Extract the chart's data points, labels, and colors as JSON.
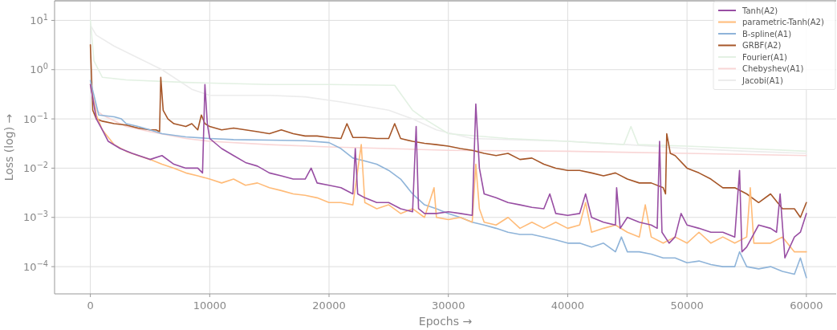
{
  "chart_data": {
    "type": "line",
    "xlabel": "Epochs →",
    "ylabel": "Loss (log) →",
    "log": "y",
    "grid": true,
    "legend": "top right",
    "line_style": "solid",
    "xlim": [
      -3000,
      62500
    ],
    "xticks": [
      0,
      10000,
      20000,
      30000,
      40000,
      50000,
      60000
    ],
    "ylim": [
      2.8e-05,
      25
    ],
    "yticks": [
      {
        "value": 0.0001,
        "label": "10$^{−4}$"
      },
      {
        "value": 0.001,
        "label": "10$^{−3}$"
      },
      {
        "value": 0.01,
        "label": "10$^{−2}$"
      },
      {
        "value": 0.1,
        "label": "10$^{−1}$"
      },
      {
        "value": 1,
        "label": "10$^{0}$"
      },
      {
        "value": 10,
        "label": "10$^{1}$"
      }
    ],
    "series": [
      {
        "name": "Tanh(A2)",
        "color": "#984ea3",
        "x": [
          0,
          500,
          1000,
          1500,
          2500,
          3500,
          5000,
          6000,
          7000,
          8000,
          9000,
          9400,
          9600,
          9800,
          10000,
          11000,
          12000,
          13000,
          14000,
          15000,
          16000,
          17000,
          18000,
          18500,
          19000,
          20000,
          21000,
          22000,
          22200,
          22400,
          23000,
          24000,
          25000,
          26000,
          27000,
          27300,
          27500,
          28000,
          29000,
          30000,
          31000,
          32000,
          32300,
          32600,
          33000,
          34000,
          35000,
          36000,
          37000,
          38000,
          38500,
          39000,
          40000,
          41000,
          41500,
          42000,
          43000,
          44000,
          44100,
          44400,
          45000,
          46000,
          47000,
          47500,
          47700,
          47900,
          48500,
          49000,
          49500,
          50000,
          51000,
          52000,
          53000,
          54000,
          54400,
          54600,
          55000,
          56000,
          57000,
          57500,
          57800,
          58200,
          59000,
          59500,
          60000
        ],
        "values": [
          0.5,
          0.1,
          0.06,
          0.035,
          0.025,
          0.02,
          0.015,
          0.018,
          0.012,
          0.01,
          0.01,
          0.008,
          0.5,
          0.08,
          0.04,
          0.025,
          0.018,
          0.013,
          0.011,
          0.008,
          0.007,
          0.006,
          0.006,
          0.01,
          0.005,
          0.0045,
          0.004,
          0.003,
          0.025,
          0.003,
          0.0025,
          0.002,
          0.002,
          0.0015,
          0.0013,
          0.07,
          0.0015,
          0.0012,
          0.0012,
          0.0013,
          0.0012,
          0.0011,
          0.2,
          0.01,
          0.003,
          0.0025,
          0.002,
          0.0018,
          0.0016,
          0.0015,
          0.003,
          0.0012,
          0.0011,
          0.0012,
          0.003,
          0.001,
          0.0008,
          0.0007,
          0.004,
          0.0006,
          0.001,
          0.0008,
          0.0007,
          0.0006,
          0.035,
          0.0005,
          0.0003,
          0.0004,
          0.0012,
          0.0007,
          0.0006,
          0.0005,
          0.0005,
          0.0004,
          0.009,
          0.0002,
          0.00025,
          0.0007,
          0.0006,
          0.0005,
          0.003,
          0.00015,
          0.0004,
          0.0005,
          0.0012
        ]
      },
      {
        "name": "parametric-Tanh(A2)",
        "color": "#ffbb78",
        "x": [
          0,
          500,
          1000,
          2000,
          3000,
          4000,
          5000,
          6000,
          7000,
          8000,
          9000,
          10000,
          11000,
          12000,
          13000,
          14000,
          15000,
          16000,
          17000,
          18000,
          19000,
          20000,
          21000,
          22000,
          22700,
          23000,
          24000,
          25000,
          26000,
          27000,
          28000,
          28800,
          29000,
          30000,
          31000,
          32000,
          32300,
          32600,
          33000,
          34000,
          35000,
          36000,
          37000,
          38000,
          39000,
          40000,
          41000,
          41500,
          42000,
          43000,
          44000,
          45000,
          46000,
          46500,
          47000,
          48000,
          49000,
          50000,
          51000,
          52000,
          53000,
          54000,
          55000,
          55300,
          55600,
          56000,
          57000,
          58000,
          59000,
          60000
        ],
        "values": [
          0.5,
          0.12,
          0.06,
          0.03,
          0.022,
          0.018,
          0.015,
          0.012,
          0.01,
          0.008,
          0.007,
          0.006,
          0.005,
          0.006,
          0.0045,
          0.005,
          0.004,
          0.0035,
          0.003,
          0.0028,
          0.0025,
          0.002,
          0.002,
          0.0018,
          0.03,
          0.002,
          0.0015,
          0.0018,
          0.0012,
          0.0015,
          0.001,
          0.004,
          0.001,
          0.0009,
          0.001,
          0.0008,
          0.012,
          0.0015,
          0.0008,
          0.0007,
          0.001,
          0.0006,
          0.0008,
          0.0006,
          0.0008,
          0.0006,
          0.0007,
          0.002,
          0.0005,
          0.0006,
          0.0007,
          0.0005,
          0.0004,
          0.0018,
          0.0004,
          0.0003,
          0.0004,
          0.0003,
          0.0005,
          0.0003,
          0.0004,
          0.0003,
          0.0004,
          0.004,
          0.0003,
          0.0003,
          0.0003,
          0.0004,
          0.0002,
          0.0002
        ]
      },
      {
        "name": "B-spline(A1)",
        "color": "#8fb4d9",
        "x": [
          0,
          300,
          700,
          2000,
          2600,
          3000,
          4000,
          5000,
          6000,
          8000,
          10000,
          12000,
          15000,
          18000,
          20000,
          21000,
          22000,
          23000,
          24000,
          25000,
          26000,
          27000,
          28000,
          29000,
          30000,
          31000,
          32000,
          33000,
          34000,
          35000,
          36000,
          37000,
          38000,
          39000,
          40000,
          41000,
          42000,
          43000,
          44000,
          44500,
          45000,
          46000,
          47000,
          48000,
          49000,
          50000,
          51000,
          52000,
          53000,
          54000,
          54400,
          55000,
          56000,
          57000,
          58000,
          59000,
          59500,
          60000
        ],
        "values": [
          0.6,
          0.3,
          0.12,
          0.11,
          0.1,
          0.08,
          0.07,
          0.06,
          0.05,
          0.043,
          0.04,
          0.038,
          0.037,
          0.036,
          0.033,
          0.025,
          0.016,
          0.014,
          0.012,
          0.009,
          0.006,
          0.003,
          0.0018,
          0.0015,
          0.0012,
          0.001,
          0.0008,
          0.0007,
          0.0006,
          0.0005,
          0.00045,
          0.00045,
          0.0004,
          0.00035,
          0.0003,
          0.0003,
          0.00025,
          0.0003,
          0.0002,
          0.0004,
          0.0002,
          0.0002,
          0.00018,
          0.00015,
          0.00015,
          0.00012,
          0.00013,
          0.00011,
          0.0001,
          0.0001,
          0.0002,
          0.0001,
          9e-05,
          0.0001,
          8e-05,
          7e-05,
          0.00015,
          6e-05
        ]
      },
      {
        "name": "GRBF(A2)",
        "color": "#a65628",
        "x": [
          0,
          200,
          500,
          1000,
          2000,
          3000,
          4000,
          5000,
          5500,
          5800,
          5900,
          6100,
          6500,
          7000,
          8000,
          8500,
          9000,
          9300,
          9600,
          10000,
          11000,
          12000,
          13000,
          14000,
          15000,
          16000,
          17000,
          18000,
          19000,
          20000,
          21000,
          21500,
          22000,
          23000,
          24000,
          25000,
          25500,
          26000,
          27000,
          28000,
          29000,
          30000,
          31000,
          32000,
          33000,
          34000,
          35000,
          36000,
          37000,
          38000,
          39000,
          40000,
          41000,
          42000,
          43000,
          44000,
          45000,
          46000,
          47000,
          48000,
          48200,
          48300,
          48600,
          49000,
          50000,
          51000,
          52000,
          53000,
          54000,
          55000,
          56000,
          57000,
          58000,
          59000,
          59500,
          60000
        ],
        "values": [
          3.2,
          0.15,
          0.1,
          0.09,
          0.08,
          0.075,
          0.065,
          0.06,
          0.06,
          0.055,
          0.7,
          0.15,
          0.1,
          0.08,
          0.07,
          0.08,
          0.06,
          0.12,
          0.08,
          0.07,
          0.06,
          0.065,
          0.06,
          0.055,
          0.05,
          0.06,
          0.05,
          0.045,
          0.045,
          0.042,
          0.04,
          0.08,
          0.042,
          0.042,
          0.04,
          0.04,
          0.08,
          0.04,
          0.035,
          0.032,
          0.03,
          0.028,
          0.025,
          0.023,
          0.02,
          0.018,
          0.02,
          0.015,
          0.016,
          0.012,
          0.01,
          0.009,
          0.009,
          0.008,
          0.007,
          0.008,
          0.006,
          0.005,
          0.005,
          0.004,
          0.003,
          0.05,
          0.02,
          0.018,
          0.01,
          0.008,
          0.006,
          0.004,
          0.004,
          0.003,
          0.002,
          0.003,
          0.0015,
          0.0015,
          0.001,
          0.002
        ]
      },
      {
        "name": "Fourier(A1)",
        "color": "#e3f1e3",
        "x": [
          0,
          300,
          1000,
          3000,
          8000,
          15000,
          20000,
          25500,
          27000,
          28000,
          30000,
          35000,
          40000,
          44700,
          45300,
          45900,
          50000,
          55000,
          60000
        ],
        "values": [
          10,
          1.5,
          0.7,
          0.62,
          0.55,
          0.5,
          0.5,
          0.48,
          0.15,
          0.1,
          0.05,
          0.04,
          0.035,
          0.03,
          0.07,
          0.03,
          0.028,
          0.025,
          0.022
        ]
      },
      {
        "name": "Chebyshev(A1)",
        "color": "#f9d6d6",
        "x": [
          0,
          500,
          1000,
          3000,
          5000,
          8000,
          10000,
          15000,
          20000,
          25000,
          30000,
          40000,
          50000,
          60000
        ],
        "values": [
          0.5,
          0.15,
          0.12,
          0.07,
          0.055,
          0.04,
          0.035,
          0.03,
          0.027,
          0.025,
          0.023,
          0.022,
          0.02,
          0.018
        ]
      },
      {
        "name": "Jacobi(A1)",
        "color": "#ececec",
        "x": [
          0,
          500,
          2000,
          6000,
          8500,
          10000,
          15000,
          18000,
          21000,
          25000,
          27000,
          29000,
          32000,
          40000,
          45000,
          50000,
          55000,
          60000
        ],
        "values": [
          8,
          5,
          3,
          1,
          0.4,
          0.3,
          0.3,
          0.28,
          0.22,
          0.15,
          0.1,
          0.06,
          0.04,
          0.035,
          0.03,
          0.025,
          0.022,
          0.02
        ]
      }
    ]
  }
}
